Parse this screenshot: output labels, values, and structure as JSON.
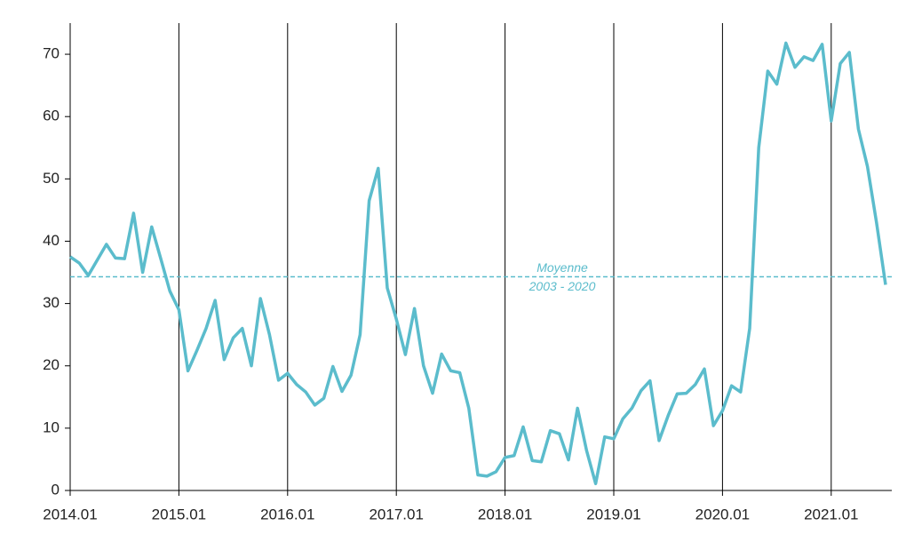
{
  "chart_data": {
    "type": "line",
    "categories": [
      "2014.01",
      null,
      null,
      null,
      null,
      null,
      null,
      null,
      null,
      null,
      null,
      null,
      "2015.01",
      null,
      null,
      null,
      null,
      null,
      null,
      null,
      null,
      null,
      null,
      null,
      "2016.01",
      null,
      null,
      null,
      null,
      null,
      null,
      null,
      null,
      null,
      null,
      null,
      "2017.01",
      null,
      null,
      null,
      null,
      null,
      null,
      null,
      null,
      null,
      null,
      null,
      "2018.01",
      null,
      null,
      null,
      null,
      null,
      null,
      null,
      null,
      null,
      null,
      null,
      "2019.01",
      null,
      null,
      null,
      null,
      null,
      null,
      null,
      null,
      null,
      null,
      null,
      "2020.01",
      null,
      null,
      null,
      null,
      null,
      null,
      null,
      null,
      null,
      null,
      null,
      "2021.01",
      null,
      null,
      null,
      null,
      null,
      null
    ],
    "series": [
      {
        "color": "#5bbccc",
        "values": [
          37.5,
          36.5,
          34.5,
          37,
          39.5,
          37.3,
          37.2,
          44.5,
          35,
          42.3,
          37.2,
          32,
          29,
          19.2,
          22.5,
          26,
          30.5,
          21,
          24.5,
          26,
          20,
          30.8,
          25,
          17.7,
          18.8,
          17,
          15.8,
          13.7,
          14.8,
          19.9,
          15.9,
          18.5,
          25,
          46.5,
          51.7,
          32.5,
          27.5,
          21.8,
          29.2,
          20,
          15.6,
          21.9,
          19.2,
          18.9,
          13.2,
          2.5,
          2.3,
          3,
          5.3,
          5.6,
          10.2,
          4.8,
          4.6,
          9.6,
          9.1,
          4.9,
          13.2,
          6.4,
          1.1,
          8.6,
          8.3,
          11.5,
          13.2,
          16,
          17.6,
          8,
          12,
          15.5,
          15.6,
          17,
          19.5,
          10.4,
          12.8,
          16.8,
          15.8,
          26,
          55,
          67.3,
          65.2,
          71.8,
          67.9,
          69.6,
          69,
          71.6,
          59.3,
          68.5,
          70.3,
          58,
          52,
          43,
          33
        ]
      }
    ],
    "ylim": [
      0,
      75
    ],
    "yticks": [
      0,
      10,
      20,
      30,
      40,
      50,
      60,
      70
    ],
    "reference_line": {
      "value": 34.3,
      "label": [
        "Moyenne",
        "2003 - 2020"
      ],
      "color": "#5bbccc"
    }
  }
}
